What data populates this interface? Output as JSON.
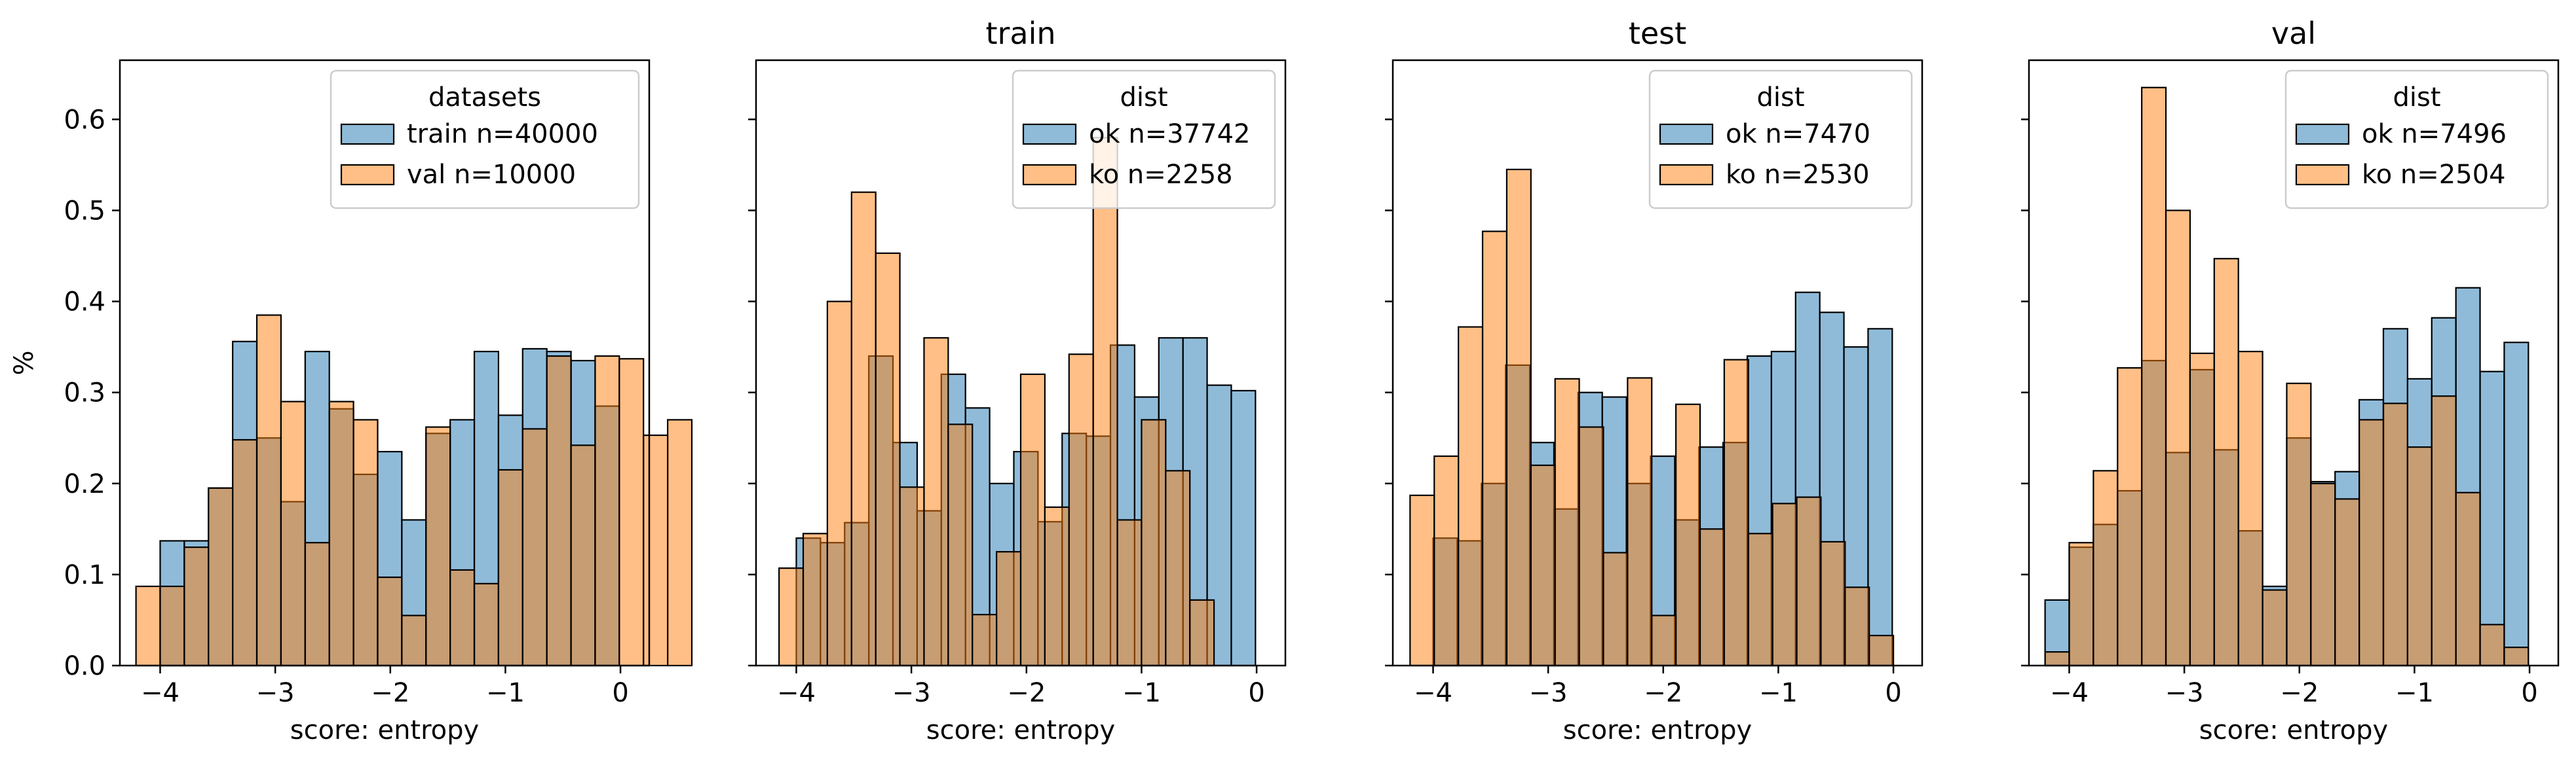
{
  "colors": {
    "first": "#1f77b4",
    "second": "#ff7f0e",
    "overlap_note": "alpha 0.5 overlay"
  },
  "chart_data": [
    {
      "type": "histogram",
      "title": "",
      "xlabel": "score: entropy",
      "ylabel": "%",
      "xlim": [
        -4.35,
        0.25
      ],
      "ylim": [
        0,
        0.665
      ],
      "xticks": [
        -4,
        -3,
        -2,
        -1,
        0
      ],
      "yticks": [
        0.0,
        0.1,
        0.2,
        0.3,
        0.4,
        0.5,
        0.6
      ],
      "ytick_labels": [
        "0.0",
        "0.1",
        "0.2",
        "0.3",
        "0.4",
        "0.5",
        "0.6"
      ],
      "legend": {
        "title": "datasets",
        "placement": "top-right"
      },
      "series": [
        {
          "name": "train n=40000",
          "color": "#1f77b4",
          "start": -4.0,
          "width": 0.21,
          "values": [
            0.137,
            0.137,
            0.195,
            0.356,
            0.25,
            0.18,
            0.345,
            0.282,
            0.21,
            0.235,
            0.16,
            0.255,
            0.27,
            0.345,
            0.275,
            0.348,
            0.345,
            0.335,
            0.285
          ]
        },
        {
          "name": "val n=10000",
          "color": "#ff7f0e",
          "start": -4.21,
          "width": 0.21,
          "values": [
            0.087,
            0.087,
            0.13,
            0.195,
            0.248,
            0.385,
            0.29,
            0.135,
            0.29,
            0.27,
            0.097,
            0.055,
            0.262,
            0.105,
            0.09,
            0.215,
            0.26,
            0.34,
            0.242,
            0.34,
            0.337,
            0.253,
            0.27
          ]
        }
      ]
    },
    {
      "type": "histogram",
      "title": "train",
      "xlabel": "score: entropy",
      "ylabel": "",
      "xlim": [
        -4.35,
        0.25
      ],
      "ylim": [
        0,
        0.665
      ],
      "xticks": [
        -4,
        -3,
        -2,
        -1,
        0
      ],
      "yticks": [
        0.0,
        0.1,
        0.2,
        0.3,
        0.4,
        0.5,
        0.6
      ],
      "legend": {
        "title": "dist",
        "placement": "top-right"
      },
      "series": [
        {
          "name": "ok n=37742",
          "color": "#1f77b4",
          "start": -4.0,
          "width": 0.21,
          "values": [
            0.14,
            0.135,
            0.157,
            0.34,
            0.245,
            0.17,
            0.32,
            0.283,
            0.2,
            0.235,
            0.158,
            0.255,
            0.252,
            0.352,
            0.295,
            0.36,
            0.36,
            0.308,
            0.302
          ]
        },
        {
          "name": "ko n=2258",
          "color": "#ff7f0e",
          "start": -4.15,
          "width": 0.21,
          "values": [
            0.107,
            0.145,
            0.4,
            0.52,
            0.453,
            0.196,
            0.36,
            0.265,
            0.056,
            0.125,
            0.32,
            0.174,
            0.342,
            0.58,
            0.16,
            0.27,
            0.214,
            0.072
          ]
        }
      ]
    },
    {
      "type": "histogram",
      "title": "test",
      "xlabel": "score: entropy",
      "ylabel": "",
      "xlim": [
        -4.35,
        0.25
      ],
      "ylim": [
        0,
        0.665
      ],
      "xticks": [
        -4,
        -3,
        -2,
        -1,
        0
      ],
      "yticks": [
        0.0,
        0.1,
        0.2,
        0.3,
        0.4,
        0.5,
        0.6
      ],
      "legend": {
        "title": "dist",
        "placement": "top-right"
      },
      "series": [
        {
          "name": "ok n=7470",
          "color": "#1f77b4",
          "start": -4.0,
          "width": 0.21,
          "values": [
            0.14,
            0.137,
            0.2,
            0.33,
            0.245,
            0.172,
            0.3,
            0.295,
            0.2,
            0.23,
            0.16,
            0.24,
            0.245,
            0.34,
            0.345,
            0.41,
            0.388,
            0.35,
            0.37
          ]
        },
        {
          "name": "ko n=2530",
          "color": "#ff7f0e",
          "start": -4.2,
          "width": 0.21,
          "values": [
            0.187,
            0.23,
            0.372,
            0.477,
            0.545,
            0.22,
            0.315,
            0.262,
            0.124,
            0.316,
            0.055,
            0.287,
            0.15,
            0.336,
            0.145,
            0.178,
            0.185,
            0.136,
            0.086,
            0.033
          ]
        }
      ]
    },
    {
      "type": "histogram",
      "title": "val",
      "xlabel": "score: entropy",
      "ylabel": "",
      "xlim": [
        -4.35,
        0.25
      ],
      "ylim": [
        0,
        0.665
      ],
      "xticks": [
        -4,
        -3,
        -2,
        -1,
        0
      ],
      "yticks": [
        0.0,
        0.1,
        0.2,
        0.3,
        0.4,
        0.5,
        0.6
      ],
      "legend": {
        "title": "dist",
        "placement": "top-right"
      },
      "series": [
        {
          "name": "ok n=7496",
          "color": "#1f77b4",
          "start": -4.21,
          "width": 0.21,
          "values": [
            0.072,
            0.13,
            0.155,
            0.192,
            0.335,
            0.234,
            0.325,
            0.237,
            0.148,
            0.087,
            0.25,
            0.202,
            0.213,
            0.292,
            0.37,
            0.315,
            0.382,
            0.415,
            0.323,
            0.355
          ]
        },
        {
          "name": "ko n=2504",
          "color": "#ff7f0e",
          "start": -4.21,
          "width": 0.21,
          "values": [
            0.015,
            0.135,
            0.214,
            0.327,
            0.635,
            0.5,
            0.343,
            0.447,
            0.345,
            0.083,
            0.31,
            0.2,
            0.183,
            0.27,
            0.288,
            0.24,
            0.296,
            0.19,
            0.045,
            0.02
          ]
        }
      ]
    }
  ]
}
